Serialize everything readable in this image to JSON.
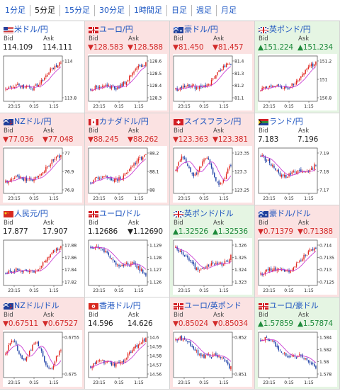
{
  "tabs": [
    {
      "label": "1分足",
      "active": false
    },
    {
      "label": "5分足",
      "active": true
    },
    {
      "label": "15分足",
      "active": false
    },
    {
      "label": "30分足",
      "active": false
    },
    {
      "label": "1時間足",
      "active": false
    },
    {
      "label": "日足",
      "active": false
    },
    {
      "label": "週足",
      "active": false
    },
    {
      "label": "月足",
      "active": false
    }
  ],
  "labels": {
    "bid": "Bid",
    "ask": "Ask"
  },
  "colors": {
    "bull": "#e0261f",
    "bear": "#1d3fa6",
    "ma": "#c52dcf",
    "up_bg": "#e5f5e3",
    "down_bg": "#fbe2e2",
    "up_text": "#1d8a3a",
    "down_text": "#d32a2a"
  },
  "x_tick_labels": [
    "23:15",
    "0:15",
    "1:15"
  ],
  "pairs": [
    {
      "title": "米ドル/円",
      "flag": "us",
      "direction": "flat",
      "bid": "114.109",
      "ask": "114.111",
      "y_ticks": [
        "114",
        "113.8"
      ],
      "trend": "rise"
    },
    {
      "title": "ユーロ/円",
      "flag": "eu",
      "direction": "down",
      "bid": "▼128.583",
      "ask": "▼128.588",
      "y_ticks": [
        "128.6",
        "128.5",
        "128.4",
        "128.3"
      ],
      "trend": "rise"
    },
    {
      "title": "豪ドル/円",
      "flag": "au",
      "direction": "down",
      "bid": "▼81.450",
      "ask": "▼81.457",
      "y_ticks": [
        "81.4",
        "81.3",
        "81.2",
        "81.1"
      ],
      "trend": "rise"
    },
    {
      "title": "英ポンド/円",
      "flag": "gb",
      "direction": "up",
      "bid": "▲151.224",
      "ask": "▲151.234",
      "y_ticks": [
        "151.2",
        "151",
        "150.8"
      ],
      "trend": "rise"
    },
    {
      "title": "NZドル/円",
      "flag": "nz",
      "direction": "down",
      "bid": "▼77.036",
      "ask": "▼77.048",
      "y_ticks": [
        "77",
        "76.9",
        "76.8"
      ],
      "trend": "rise"
    },
    {
      "title": "カナダドル/円",
      "flag": "ca",
      "direction": "down",
      "bid": "▼88.245",
      "ask": "▼88.262",
      "y_ticks": [
        "88.2",
        "88.1",
        "88"
      ],
      "trend": "rise"
    },
    {
      "title": "スイスフラン/円",
      "flag": "ch",
      "direction": "down",
      "bid": "▼123.363",
      "ask": "▼123.381",
      "y_ticks": [
        "123.35",
        "123.3",
        "123.25"
      ],
      "trend": "choppy"
    },
    {
      "title": "ランド/円",
      "flag": "za",
      "direction": "flat",
      "bid": "7.183",
      "ask": "7.196",
      "y_ticks": [
        "7.19",
        "7.18",
        "7.17"
      ],
      "trend": "vshape"
    },
    {
      "title": "人民元/円",
      "flag": "cn",
      "direction": "flat",
      "bid": "17.877",
      "ask": "17.907",
      "y_ticks": [
        "17.88",
        "17.86",
        "17.84",
        "17.82"
      ],
      "trend": "rise"
    },
    {
      "title": "ユーロ/ドル",
      "flag": "eu",
      "direction": "flat",
      "bid": "1.12686",
      "ask": "▼1.12690",
      "y_ticks": [
        "1.129",
        "1.128",
        "1.127",
        "1.126"
      ],
      "trend": "fall"
    },
    {
      "title": "英ポンド/ドル",
      "flag": "gb",
      "direction": "up",
      "bid": "▲1.32526",
      "ask": "▲1.32536",
      "y_ticks": [
        "1.326",
        "1.325",
        "1.324",
        "1.323"
      ],
      "trend": "vshape"
    },
    {
      "title": "豪ドル/ドル",
      "flag": "au",
      "direction": "down",
      "bid": "▼0.71379",
      "ask": "▼0.71388",
      "y_ticks": [
        "0.714",
        "0.7135",
        "0.713",
        "0.7125"
      ],
      "trend": "rise"
    },
    {
      "title": "NZドル/ドル",
      "flag": "nz",
      "direction": "down",
      "bid": "▼0.67511",
      "ask": "▼0.67527",
      "y_ticks": [
        "0.6755",
        "0.675"
      ],
      "trend": "choppy"
    },
    {
      "title": "香港ドル/円",
      "flag": "hk",
      "direction": "flat",
      "bid": "14.596",
      "ask": "14.626",
      "y_ticks": [
        "14.6",
        "14.59",
        "14.58",
        "14.57",
        "14.56"
      ],
      "trend": "rise"
    },
    {
      "title": "ユーロ/英ポンド",
      "flag": "eu",
      "direction": "down",
      "bid": "▼0.85024",
      "ask": "▼0.85034",
      "y_ticks": [
        "0.852",
        "0.851"
      ],
      "trend": "fall"
    },
    {
      "title": "ユーロ/豪ドル",
      "flag": "eu",
      "direction": "up",
      "bid": "▲1.57859",
      "ask": "▲1.57874",
      "y_ticks": [
        "1.584",
        "1.582",
        "1.58",
        "1.578"
      ],
      "trend": "fall"
    }
  ]
}
